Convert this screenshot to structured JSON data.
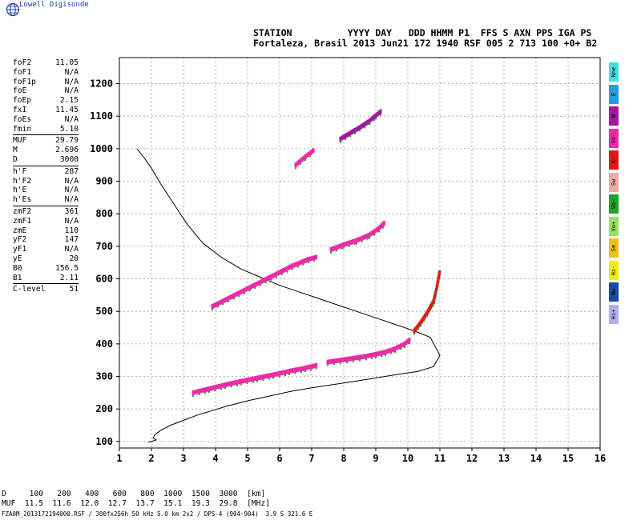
{
  "header": {
    "brand": "Lowell Digisonde",
    "line1": "STATION          YYYY DAY   DDD HHMM P1  FFS S AXN PPS IGA PS",
    "line2": "Fortaleza, Brasil 2013 Jun21 172 1940 RSF 005 2 713 100 +0+ B2"
  },
  "params": [
    {
      "label": "foF2",
      "value": "11.05"
    },
    {
      "label": "foF1",
      "value": "N/A"
    },
    {
      "label": "foF1p",
      "value": "N/A"
    },
    {
      "label": "foE",
      "value": "N/A"
    },
    {
      "label": "foEp",
      "value": "2.15"
    },
    {
      "label": "fxI",
      "value": "11.45"
    },
    {
      "label": "foEs",
      "value": "N/A"
    },
    {
      "label": "fmin",
      "value": "5.10"
    },
    {
      "label": "MUF",
      "value": "29.79",
      "sep": true
    },
    {
      "label": "M",
      "value": "2.696"
    },
    {
      "label": "D",
      "value": "3000"
    },
    {
      "label": "h'F",
      "value": "287",
      "sep": true
    },
    {
      "label": "h'F2",
      "value": "N/A"
    },
    {
      "label": "h'E",
      "value": "N/A"
    },
    {
      "label": "h'Es",
      "value": "N/A"
    },
    {
      "label": "zmF2",
      "value": "361",
      "sep": true
    },
    {
      "label": "zmF1",
      "value": "N/A"
    },
    {
      "label": "zmE",
      "value": "110"
    },
    {
      "label": "yF2",
      "value": "147"
    },
    {
      "label": "yF1",
      "value": "N/A"
    },
    {
      "label": "yE",
      "value": "20"
    },
    {
      "label": "B0",
      "value": "156.5"
    },
    {
      "label": "B1",
      "value": "2.11"
    },
    {
      "label": "C-level",
      "value": "51",
      "sep": true
    }
  ],
  "legend": [
    {
      "label": "Nne",
      "color": "#33e6e6"
    },
    {
      "label": "E",
      "color": "#2a9de0"
    },
    {
      "label": "W",
      "color": "#a01aa0"
    },
    {
      "label": "Vo-",
      "color": "#ee2aa8"
    },
    {
      "label": "X-",
      "color": "#e01818"
    },
    {
      "label": "Sw",
      "color": "#f0a8a8"
    },
    {
      "label": "Vo-",
      "color": "#22a22a"
    },
    {
      "label": "Vo+",
      "color": "#99e066"
    },
    {
      "label": "Se",
      "color": "#f0c020"
    },
    {
      "label": "Hi-",
      "color": "#f0f000"
    },
    {
      "label": "Nw",
      "color": "#1a4ea0"
    },
    {
      "label": "Hi+",
      "color": "#b0b0f0"
    }
  ],
  "muf_table": {
    "line1": "D     100   200   400   600   800  1000  1500  3000  [km]",
    "line2": "MUF  11.5  11.6  12.0  12.7  13.7  15.1  19.3  29.8  [MHz]"
  },
  "footer": "FZA0M_2013172194000.RSF / 300fx256h 50 kHz 5.0 km 2x2 / DPS-4 (904-904)  3.9 S 321.6 E",
  "chart_data": {
    "type": "scatter",
    "xlim": [
      1,
      16
    ],
    "ylim": [
      80,
      1280
    ],
    "x_ticks": [
      1,
      2,
      3,
      4,
      5,
      6,
      7,
      8,
      9,
      10,
      11,
      12,
      13,
      14,
      15,
      16
    ],
    "y_ticks": [
      100,
      200,
      300,
      400,
      500,
      600,
      700,
      800,
      900,
      1000,
      1100,
      1200
    ],
    "grid": true,
    "profile_curve": {
      "x": [
        1.55,
        1.75,
        2.0,
        2.3,
        2.7,
        3.1,
        3.6,
        4.2,
        4.8,
        5.4,
        6.0,
        6.6,
        7.2,
        7.8,
        8.4,
        9.0,
        9.6,
        10.2,
        10.7,
        11.0,
        10.8,
        10.3,
        9.6,
        8.8,
        8.0,
        7.2,
        6.4,
        5.7,
        5.0,
        4.4,
        3.9,
        3.4,
        3.0,
        2.6,
        2.3,
        2.1,
        2.05,
        2.15,
        2.0,
        1.9
      ],
      "y": [
        1000,
        975,
        940,
        890,
        830,
        770,
        710,
        665,
        630,
        605,
        580,
        560,
        540,
        520,
        500,
        480,
        460,
        440,
        420,
        365,
        330,
        315,
        305,
        292,
        280,
        268,
        255,
        240,
        225,
        210,
        195,
        180,
        165,
        150,
        135,
        120,
        110,
        105,
        100,
        98
      ]
    },
    "series": [
      {
        "name": "F",
        "color": "#ee2aa8",
        "x": [
          3.3,
          3.8,
          4.3,
          4.8,
          5.3,
          5.8,
          6.3,
          6.8,
          7.2
        ],
        "y": [
          250,
          262,
          274,
          285,
          295,
          305,
          316,
          326,
          335
        ]
      },
      {
        "name": "F",
        "color": "#ee2aa8",
        "x": [
          7.5,
          7.9,
          8.3,
          8.7,
          9.0,
          9.3,
          9.6,
          9.9,
          10.1
        ],
        "y": [
          344,
          350,
          356,
          362,
          368,
          375,
          385,
          400,
          415
        ]
      },
      {
        "name": "F",
        "color": "#e01818",
        "x": [
          10.2,
          10.4,
          10.6,
          10.8,
          10.9,
          11.0
        ],
        "y": [
          440,
          465,
          495,
          530,
          570,
          625
        ]
      },
      {
        "name": "2F",
        "color": "#ee2aa8",
        "x": [
          3.9,
          4.4,
          4.9,
          5.4,
          5.9,
          6.4,
          6.9,
          7.2
        ],
        "y": [
          515,
          540,
          565,
          590,
          615,
          640,
          660,
          668
        ]
      },
      {
        "name": "2F",
        "color": "#ee2aa8",
        "x": [
          7.6,
          8.0,
          8.4,
          8.8,
          9.1,
          9.3
        ],
        "y": [
          690,
          705,
          718,
          735,
          755,
          775
        ]
      },
      {
        "name": "3F",
        "color": "#ee2aa8",
        "x": [
          6.5,
          6.8,
          7.1
        ],
        "y": [
          950,
          975,
          998
        ]
      },
      {
        "name": "3F",
        "color": "#a01aa0",
        "x": [
          7.9,
          8.2,
          8.5,
          8.8,
          9.0,
          9.2
        ],
        "y": [
          1030,
          1048,
          1065,
          1085,
          1102,
          1118
        ]
      }
    ]
  }
}
